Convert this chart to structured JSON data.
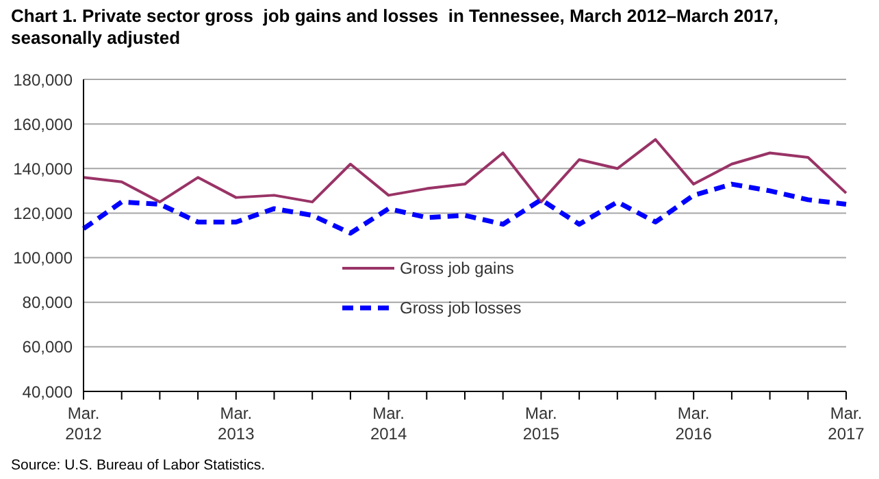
{
  "chart_data": {
    "type": "line",
    "title": "Chart 1. Private sector gross  job gains and losses  in Tennessee, March 2012–March 2017, seasonally adjusted",
    "categories": [
      "Mar.\n2012",
      null,
      null,
      null,
      "Mar.\n2013",
      null,
      null,
      null,
      "Mar.\n2014",
      null,
      null,
      null,
      "Mar.\n2015",
      null,
      null,
      null,
      "Mar.\n2016",
      null,
      null,
      null,
      "Mar.\n2017"
    ],
    "series": [
      {
        "name": "Gross job gains",
        "color": "#993366",
        "line_style": "solid",
        "values": [
          136000,
          134000,
          125000,
          136000,
          127000,
          128000,
          125000,
          142000,
          128000,
          131000,
          133000,
          147000,
          125000,
          144000,
          140000,
          153000,
          133000,
          142000,
          147000,
          145000,
          129000
        ]
      },
      {
        "name": "Gross job losses",
        "color": "#0000ff",
        "line_style": "dashed",
        "values": [
          113000,
          125000,
          124000,
          116000,
          116000,
          122000,
          119000,
          111000,
          122000,
          118000,
          119000,
          115000,
          126000,
          115000,
          125000,
          116000,
          128000,
          133000,
          130000,
          126000,
          124000
        ]
      }
    ],
    "ylim": [
      40000,
      180000
    ],
    "yticks": [
      {
        "value": 40000,
        "label": "40,000"
      },
      {
        "value": 60000,
        "label": "60,000"
      },
      {
        "value": 80000,
        "label": "80,000"
      },
      {
        "value": 100000,
        "label": "100,000"
      },
      {
        "value": 120000,
        "label": "120,000"
      },
      {
        "value": 140000,
        "label": "140,000"
      },
      {
        "value": 160000,
        "label": "160,000"
      },
      {
        "value": 180000,
        "label": "180,000"
      }
    ],
    "grid": "y",
    "legend": "center",
    "marker": "none",
    "annotations": [
      "Source: U.S. Bureau of Labor Statistics."
    ]
  }
}
